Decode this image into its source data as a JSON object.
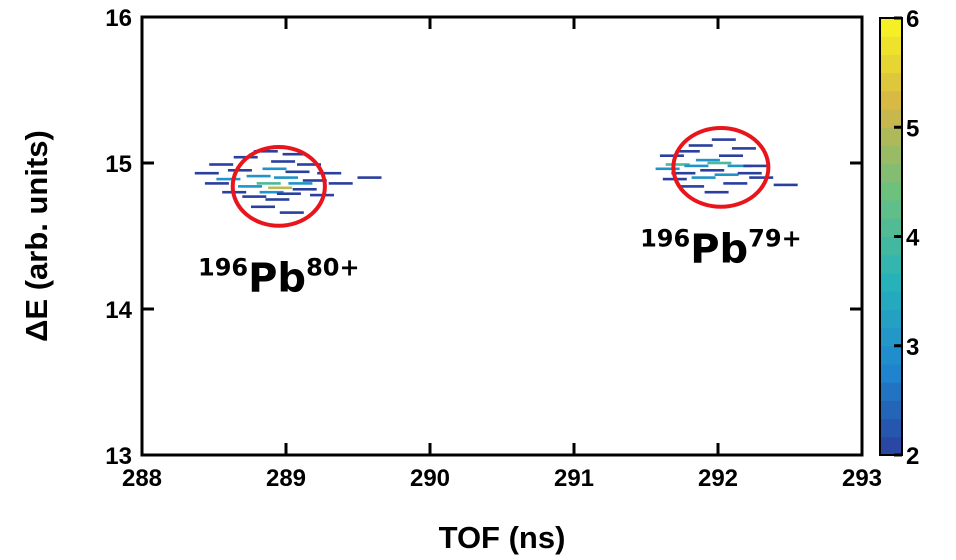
{
  "chart_data": {
    "type": "heatmap",
    "xlabel": "TOF (ns)",
    "ylabel": "ΔE (arb. units)",
    "xlim": [
      288,
      293
    ],
    "ylim": [
      13,
      16
    ],
    "xticks": [
      "288",
      "289",
      "290",
      "291",
      "292",
      "293"
    ],
    "yticks": [
      "13",
      "14",
      "15",
      "16"
    ],
    "colorbar": {
      "range": [
        2,
        6
      ],
      "ticks": [
        "2",
        "3",
        "4",
        "5",
        "6"
      ],
      "colors": [
        "#2a3f9e",
        "#1f88d0",
        "#27b3b8",
        "#6cc07e",
        "#d6b545",
        "#f9f722"
      ]
    },
    "clusters": [
      {
        "label": {
          "mass": "196",
          "element": "Pb",
          "charge": "80+"
        },
        "center": [
          288.95,
          14.84
        ],
        "circle_radius": [
          0.32,
          0.27
        ],
        "bins": [
          [
            288.45,
            14.93,
            2
          ],
          [
            288.52,
            14.86,
            2
          ],
          [
            288.55,
            14.99,
            2
          ],
          [
            288.6,
            14.89,
            3
          ],
          [
            288.64,
            14.8,
            2
          ],
          [
            288.68,
            14.95,
            2
          ],
          [
            288.72,
            15.04,
            2
          ],
          [
            288.75,
            14.84,
            3
          ],
          [
            288.78,
            14.77,
            2
          ],
          [
            288.81,
            14.91,
            3
          ],
          [
            288.84,
            14.7,
            2
          ],
          [
            288.86,
            15.08,
            2
          ],
          [
            288.88,
            14.86,
            4
          ],
          [
            288.9,
            14.8,
            3
          ],
          [
            288.92,
            14.96,
            3
          ],
          [
            288.94,
            14.75,
            2
          ],
          [
            288.96,
            14.83,
            5
          ],
          [
            288.98,
            15.01,
            2
          ],
          [
            289.0,
            14.9,
            3
          ],
          [
            289.02,
            14.79,
            2
          ],
          [
            289.04,
            14.66,
            2
          ],
          [
            289.06,
            15.06,
            2
          ],
          [
            289.08,
            14.94,
            2
          ],
          [
            289.1,
            14.86,
            3
          ],
          [
            289.13,
            14.82,
            2
          ],
          [
            289.16,
            14.99,
            2
          ],
          [
            289.2,
            14.88,
            2
          ],
          [
            289.25,
            14.78,
            2
          ],
          [
            289.3,
            14.93,
            2
          ],
          [
            289.38,
            14.86,
            2
          ],
          [
            289.58,
            14.9,
            2
          ]
        ]
      },
      {
        "label": {
          "mass": "196",
          "element": "Pb",
          "charge": "79+"
        },
        "center": [
          292.02,
          14.97
        ],
        "circle_radius": [
          0.33,
          0.27
        ],
        "bins": [
          [
            291.65,
            14.96,
            3
          ],
          [
            291.68,
            15.05,
            2
          ],
          [
            291.7,
            14.89,
            2
          ],
          [
            291.72,
            14.99,
            4
          ],
          [
            291.76,
            14.93,
            2
          ],
          [
            291.79,
            15.08,
            2
          ],
          [
            291.82,
            14.84,
            2
          ],
          [
            291.85,
            14.98,
            3
          ],
          [
            291.88,
            15.12,
            2
          ],
          [
            291.9,
            14.9,
            3
          ],
          [
            291.93,
            15.02,
            3
          ],
          [
            291.96,
            14.95,
            2
          ],
          [
            291.99,
            14.8,
            2
          ],
          [
            292.01,
            15.0,
            4
          ],
          [
            292.04,
            15.16,
            2
          ],
          [
            292.06,
            14.92,
            3
          ],
          [
            292.09,
            15.05,
            2
          ],
          [
            292.12,
            14.86,
            2
          ],
          [
            292.15,
            14.98,
            3
          ],
          [
            292.18,
            15.1,
            2
          ],
          [
            292.22,
            14.93,
            2
          ],
          [
            292.26,
            14.98,
            2
          ],
          [
            292.3,
            14.9,
            2
          ],
          [
            292.47,
            14.85,
            2
          ]
        ]
      }
    ]
  }
}
